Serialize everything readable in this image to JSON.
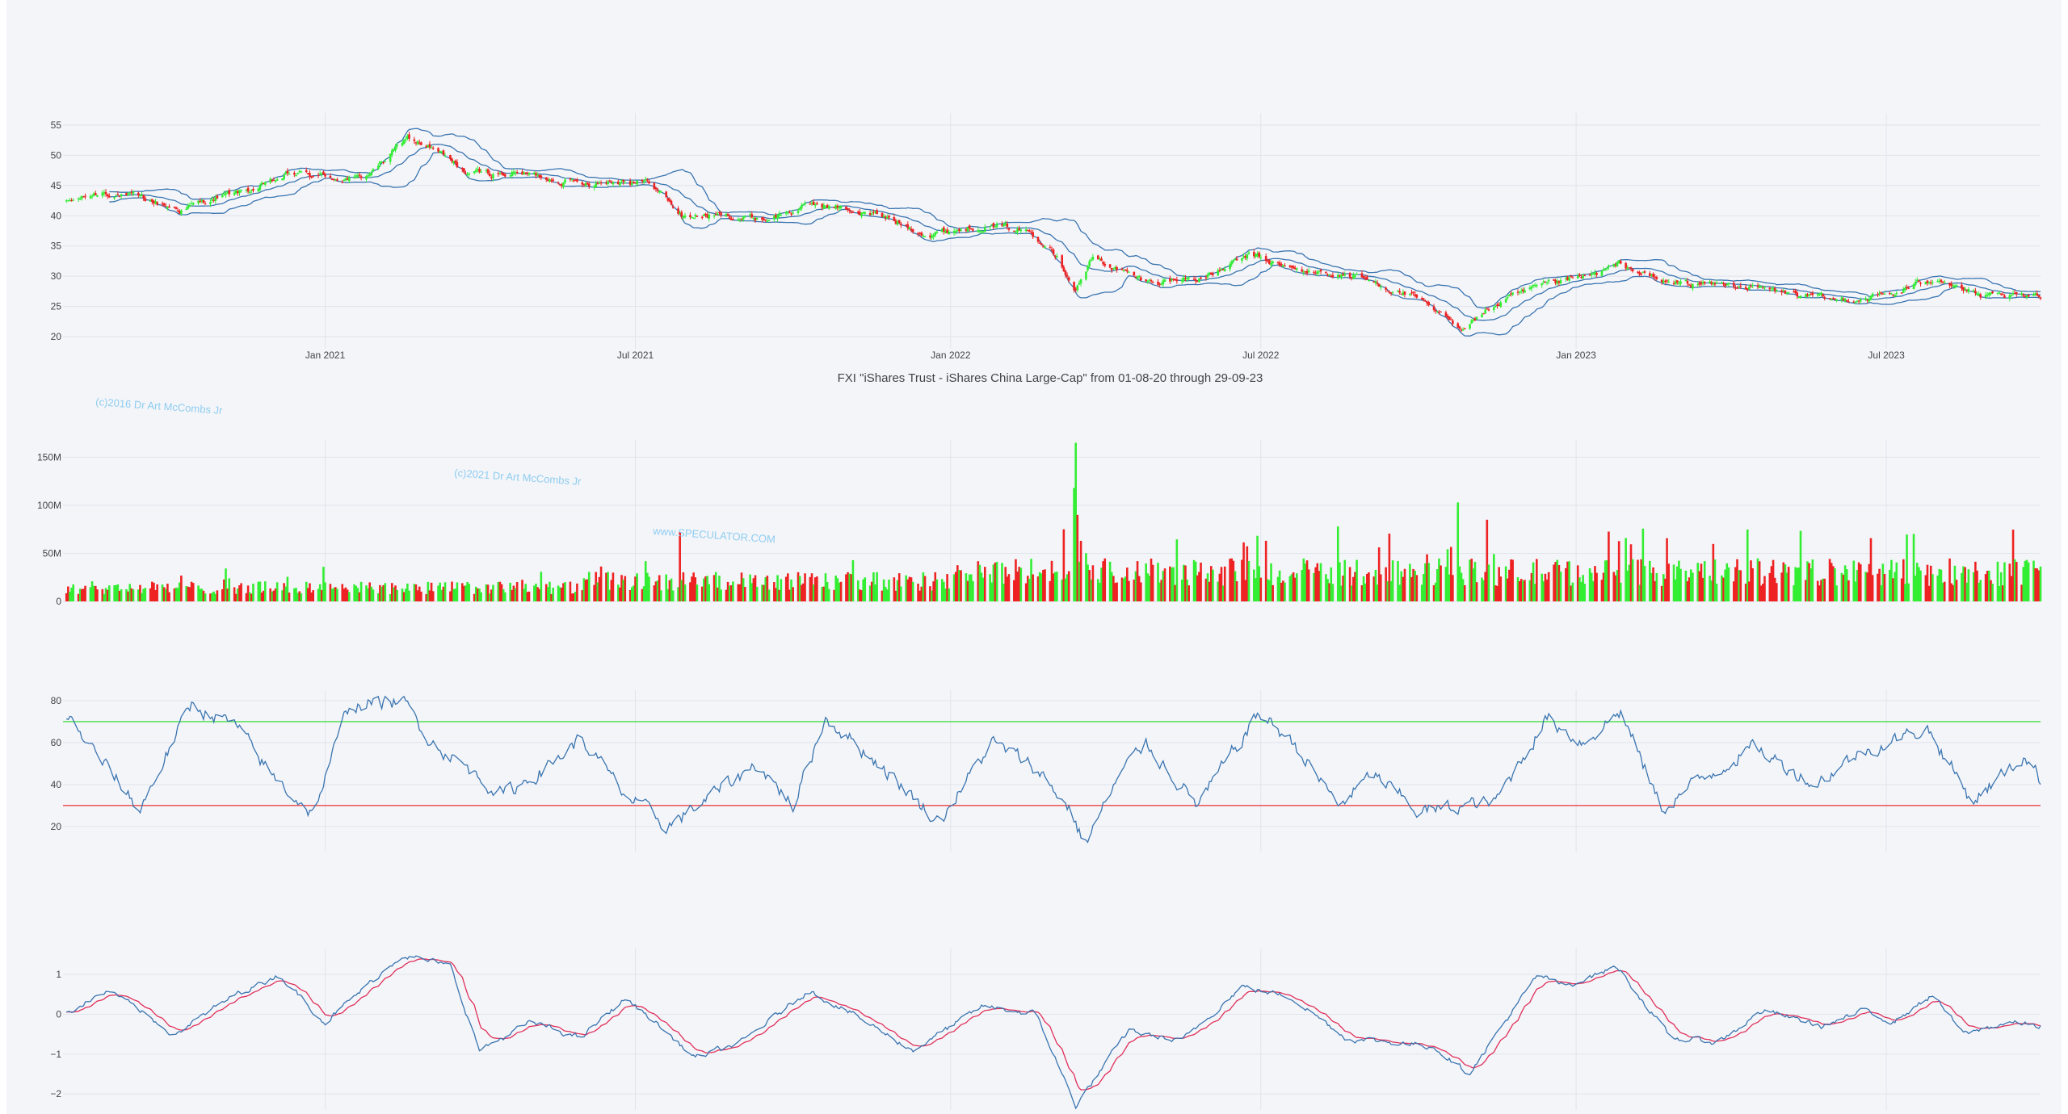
{
  "colors": {
    "background": "#f4f5f9",
    "grid": "#e1e4ec",
    "axis_text": "#444444",
    "up": "#33ee33",
    "down": "#ee2222",
    "line": "#3a75b0",
    "signal": "#e0305a",
    "overbought": "#44dd44",
    "oversold": "#ee4444",
    "watermark": "#8ecdf0"
  },
  "title": "FXI \"iShares Trust - iShares China Large-Cap\" from 01-08-20 through 29-09-23",
  "watermarks": [
    "(c)2016 Dr Art McCombs Jr",
    "(c)2021 Dr Art McCombs Jr",
    "www.SPECULATOR.COM"
  ],
  "chart_data": [
    {
      "type": "candlestick",
      "overlay": "bollinger-bands",
      "x_start": "2020-08-01",
      "x_end": "2023-09-29",
      "x_ticks": [
        "2021-01-01",
        "2021-07-01",
        "2022-01-01",
        "2022-07-01",
        "2023-01-01",
        "2023-07-01"
      ],
      "x_tick_labels": [
        "Jan 2021",
        "Jul 2021",
        "Jan 2022",
        "Jul 2022",
        "Jan 2023",
        "Jul 2023"
      ],
      "ylim": [
        18,
        57
      ],
      "y_ticks": [
        20,
        25,
        30,
        35,
        40,
        45,
        50,
        55
      ],
      "close_anchors": [
        [
          "2020-08-01",
          42
        ],
        [
          "2020-08-25",
          44
        ],
        [
          "2020-09-20",
          42.5
        ],
        [
          "2020-10-08",
          41
        ],
        [
          "2020-10-30",
          43
        ],
        [
          "2020-11-28",
          45
        ],
        [
          "2020-12-12",
          47
        ],
        [
          "2021-01-01",
          46.5
        ],
        [
          "2021-01-22",
          46
        ],
        [
          "2021-02-08",
          50
        ],
        [
          "2021-02-18",
          53
        ],
        [
          "2021-03-05",
          51
        ],
        [
          "2021-03-25",
          47
        ],
        [
          "2021-04-25",
          47
        ],
        [
          "2021-05-30",
          45.5
        ],
        [
          "2021-06-25",
          46
        ],
        [
          "2021-07-10",
          45.5
        ],
        [
          "2021-07-28",
          40
        ],
        [
          "2021-08-20",
          40
        ],
        [
          "2021-09-15",
          39.5
        ],
        [
          "2021-10-15",
          42
        ],
        [
          "2021-11-20",
          40
        ],
        [
          "2021-12-20",
          37
        ],
        [
          "2022-01-20",
          38.5
        ],
        [
          "2022-02-15",
          37.5
        ],
        [
          "2022-03-01",
          35
        ],
        [
          "2022-03-15",
          28
        ],
        [
          "2022-03-25",
          33
        ],
        [
          "2022-04-25",
          29
        ],
        [
          "2022-06-01",
          30
        ],
        [
          "2022-06-25",
          33.5
        ],
        [
          "2022-07-20",
          31
        ],
        [
          "2022-08-25",
          30
        ],
        [
          "2022-09-25",
          27
        ],
        [
          "2022-10-25",
          21.5
        ],
        [
          "2022-11-20",
          26
        ],
        [
          "2022-12-15",
          28.5
        ],
        [
          "2023-01-10",
          30
        ],
        [
          "2023-01-27",
          32
        ],
        [
          "2023-02-20",
          29
        ],
        [
          "2023-04-05",
          28.5
        ],
        [
          "2023-05-31",
          26
        ],
        [
          "2023-07-05",
          27
        ],
        [
          "2023-07-31",
          30
        ],
        [
          "2023-08-25",
          26.5
        ],
        [
          "2023-09-29",
          26.5
        ]
      ]
    },
    {
      "type": "bar",
      "name": "volume",
      "ylim": [
        0,
        168000000
      ],
      "y_ticks": [
        0,
        50000000,
        100000000,
        150000000
      ],
      "y_tick_labels": [
        "0",
        "50M",
        "100M",
        "150M"
      ],
      "base_level": 20000000,
      "peaks": [
        [
          "2020-12-31",
          36000000
        ],
        [
          "2021-07-27",
          72000000
        ],
        [
          "2022-03-14",
          118000000
        ],
        [
          "2022-03-15",
          165000000
        ],
        [
          "2022-03-16",
          90000000
        ],
        [
          "2022-10-24",
          103000000
        ],
        [
          "2022-11-10",
          85000000
        ],
        [
          "2022-08-15",
          78000000
        ]
      ]
    },
    {
      "type": "line",
      "name": "oscillator",
      "ylim": [
        8,
        85
      ],
      "y_ticks": [
        20,
        40,
        60,
        80
      ],
      "upper_line": 70,
      "lower_line": 30,
      "anchors": [
        [
          "2020-08-01",
          75
        ],
        [
          "2020-08-20",
          55
        ],
        [
          "2020-09-15",
          28
        ],
        [
          "2020-10-05",
          62
        ],
        [
          "2020-10-15",
          78
        ],
        [
          "2020-11-10",
          68
        ],
        [
          "2020-11-30",
          45
        ],
        [
          "2020-12-25",
          26
        ],
        [
          "2021-01-15",
          78
        ],
        [
          "2021-02-15",
          80
        ],
        [
          "2021-03-05",
          60
        ],
        [
          "2021-04-15",
          35
        ],
        [
          "2021-05-10",
          48
        ],
        [
          "2021-05-30",
          62
        ],
        [
          "2021-06-25",
          35
        ],
        [
          "2021-07-20",
          20
        ],
        [
          "2021-08-20",
          38
        ],
        [
          "2021-09-10",
          50
        ],
        [
          "2021-10-01",
          30
        ],
        [
          "2021-10-20",
          72
        ],
        [
          "2021-11-20",
          50
        ],
        [
          "2021-12-25",
          22
        ],
        [
          "2022-01-25",
          60
        ],
        [
          "2022-02-20",
          48
        ],
        [
          "2022-03-12",
          28
        ],
        [
          "2022-03-20",
          11
        ],
        [
          "2022-04-10",
          45
        ],
        [
          "2022-04-25",
          60
        ],
        [
          "2022-05-25",
          30
        ],
        [
          "2022-06-30",
          74
        ],
        [
          "2022-07-20",
          60
        ],
        [
          "2022-08-15",
          30
        ],
        [
          "2022-09-05",
          45
        ],
        [
          "2022-10-01",
          27
        ],
        [
          "2022-11-15",
          32
        ],
        [
          "2022-12-15",
          72
        ],
        [
          "2023-01-05",
          60
        ],
        [
          "2023-01-27",
          75
        ],
        [
          "2023-02-20",
          28
        ],
        [
          "2023-03-10",
          40
        ],
        [
          "2023-04-15",
          58
        ],
        [
          "2023-05-20",
          40
        ],
        [
          "2023-06-15",
          55
        ],
        [
          "2023-07-25",
          67
        ],
        [
          "2023-08-20",
          32
        ],
        [
          "2023-09-20",
          54
        ],
        [
          "2023-09-29",
          42
        ]
      ]
    },
    {
      "type": "line",
      "name": "oscillator-with-signal",
      "ylim": [
        -2.4,
        1.65
      ],
      "y_ticks": [
        -2,
        -1,
        0,
        1
      ],
      "y_tick_labels": [
        "−2",
        "−1",
        "0",
        "1"
      ],
      "anchors": [
        [
          "2020-08-01",
          0
        ],
        [
          "2020-08-28",
          0.6
        ],
        [
          "2020-10-05",
          -0.5
        ],
        [
          "2020-11-10",
          0.5
        ],
        [
          "2020-12-05",
          1.0
        ],
        [
          "2021-01-01",
          -0.2
        ],
        [
          "2021-02-15",
          1.5
        ],
        [
          "2021-03-15",
          1.2
        ],
        [
          "2021-04-01",
          -0.9
        ],
        [
          "2021-05-01",
          -0.2
        ],
        [
          "2021-05-30",
          -0.6
        ],
        [
          "2021-06-25",
          0.4
        ],
        [
          "2021-07-10",
          -0.1
        ],
        [
          "2021-08-05",
          -1.1
        ],
        [
          "2021-09-01",
          -0.7
        ],
        [
          "2021-10-10",
          0.6
        ],
        [
          "2021-11-01",
          0.1
        ],
        [
          "2021-12-10",
          -0.9
        ],
        [
          "2022-01-20",
          0.2
        ],
        [
          "2022-02-20",
          0.0
        ],
        [
          "2022-03-15",
          -2.3
        ],
        [
          "2022-04-15",
          -0.4
        ],
        [
          "2022-05-15",
          -0.7
        ],
        [
          "2022-06-20",
          0.7
        ],
        [
          "2022-07-20",
          0.4
        ],
        [
          "2022-08-20",
          -0.6
        ],
        [
          "2022-10-10",
          -0.8
        ],
        [
          "2022-10-30",
          -1.5
        ],
        [
          "2022-12-10",
          1.0
        ],
        [
          "2022-12-25",
          0.7
        ],
        [
          "2023-01-25",
          1.2
        ],
        [
          "2023-02-25",
          -0.6
        ],
        [
          "2023-03-25",
          -0.7
        ],
        [
          "2023-04-20",
          0.1
        ],
        [
          "2023-05-25",
          -0.3
        ],
        [
          "2023-06-20",
          0.1
        ],
        [
          "2023-07-05",
          -0.2
        ],
        [
          "2023-07-28",
          0.5
        ],
        [
          "2023-08-15",
          -0.5
        ],
        [
          "2023-09-10",
          -0.2
        ],
        [
          "2023-09-29",
          -0.3
        ]
      ]
    }
  ]
}
